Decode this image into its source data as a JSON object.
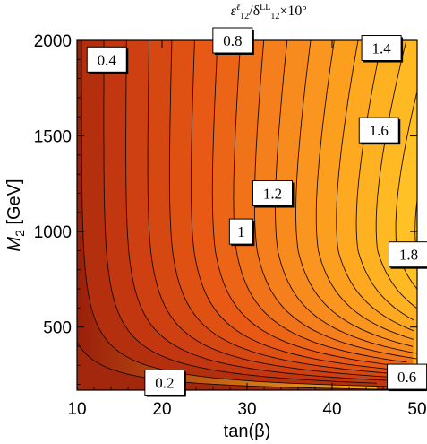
{
  "chart_data": {
    "type": "contour",
    "title": {
      "parts": [
        "ε",
        "ℓ",
        "12",
        "/δ",
        "LL",
        "12",
        "×10",
        "5"
      ]
    },
    "xlabel": "tan(β)",
    "ylabel": {
      "main": "M",
      "sub": "2",
      "unit": " [GeV]"
    },
    "xlim": [
      10,
      50
    ],
    "ylim": [
      170,
      2000
    ],
    "x_ticks": [
      10,
      20,
      30,
      40,
      50
    ],
    "y_ticks": [
      500,
      1000,
      1500,
      2000
    ],
    "x_tick_labels": [
      "10",
      "20",
      "30",
      "40",
      "50"
    ],
    "y_tick_labels": [
      "500",
      "1000",
      "1500",
      "2000"
    ],
    "colormap": [
      "#8b1a0a",
      "#c83a10",
      "#e85a14",
      "#f88a1e",
      "#ffb020",
      "#ffcc2a"
    ],
    "contour_levels": [
      0.2,
      0.3,
      0.4,
      0.5,
      0.6,
      0.7,
      0.8,
      0.9,
      1.0,
      1.1,
      1.2,
      1.3,
      1.4,
      1.5,
      1.6,
      1.7,
      1.8,
      1.9
    ],
    "contour_labels": [
      {
        "text": "0.4",
        "x": 13.5,
        "y": 1900
      },
      {
        "text": "0.8",
        "x": 28.3,
        "y": 2000
      },
      {
        "text": "1.4",
        "x": 45.8,
        "y": 1960
      },
      {
        "text": "1.6",
        "x": 45.5,
        "y": 1530
      },
      {
        "text": "1.2",
        "x": 33.0,
        "y": 1200
      },
      {
        "text": "1",
        "x": 29.3,
        "y": 1000
      },
      {
        "text": "1.8",
        "x": 49.0,
        "y": 880
      },
      {
        "text": "0.2",
        "x": 20.3,
        "y": 210
      },
      {
        "text": "0.6",
        "x": 48.8,
        "y": 240
      }
    ]
  }
}
